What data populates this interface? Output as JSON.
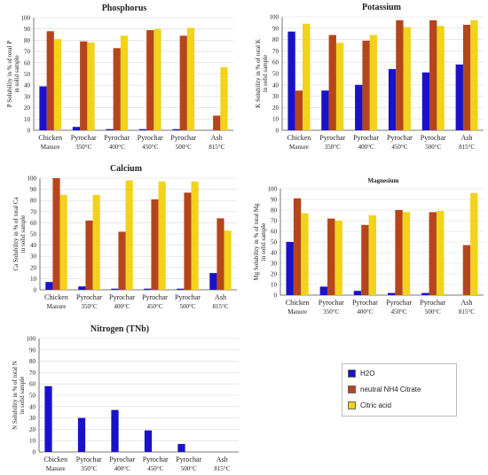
{
  "chart_data": [
    {
      "type": "bar",
      "title": "Phosphorus",
      "ylabel": "P Solubility in % of total P in solid sample",
      "ylim": [
        0,
        100
      ],
      "yticks": [
        0,
        10,
        20,
        30,
        40,
        50,
        60,
        70,
        80,
        90,
        100
      ],
      "categories": [
        "Chicken Manure",
        "Pyrochar 350°C",
        "Pyrochar 400°C",
        "Pyrochar 450°C",
        "Pyrochar 500°C",
        "Ash 815°C"
      ],
      "series": [
        {
          "name": "H2O",
          "values": [
            39,
            3,
            1,
            1,
            1,
            0
          ]
        },
        {
          "name": "neutral NH4 Citrate",
          "values": [
            88,
            79,
            73,
            89,
            84,
            13
          ]
        },
        {
          "name": "Citric acid",
          "values": [
            81,
            78,
            84,
            90,
            91,
            56
          ]
        }
      ]
    },
    {
      "type": "bar",
      "title": "Potassium",
      "ylabel": "K Solubility in % of total K in solid sample",
      "ylim": [
        0,
        100
      ],
      "yticks": [
        0,
        10,
        20,
        30,
        40,
        50,
        60,
        70,
        80,
        90,
        100
      ],
      "categories": [
        "Chicken Manure",
        "Pyrochar 350°C",
        "Pyrochar 400°C",
        "Pyrochar 450°C",
        "Pyrochar 500°C",
        "Ash 815°C"
      ],
      "series": [
        {
          "name": "H2O",
          "values": [
            87,
            35,
            40,
            54,
            51,
            58
          ]
        },
        {
          "name": "neutral NH4 Citrate",
          "values": [
            35,
            84,
            79,
            97,
            97,
            93
          ]
        },
        {
          "name": "Citric acid",
          "values": [
            94,
            77,
            84,
            91,
            92,
            97
          ]
        }
      ]
    },
    {
      "type": "bar",
      "title": "Calcium",
      "ylabel": "Ca Solubility in % of total Ca in solid sample",
      "ylim": [
        0,
        100
      ],
      "yticks": [
        0,
        10,
        20,
        30,
        40,
        50,
        60,
        70,
        80,
        90,
        100
      ],
      "categories": [
        "Chicken Manure",
        "Pyrochar 350°C",
        "Pyrochar 400°C",
        "Pyrochar 450°C",
        "Pyrochar 500°C",
        "Ash 815°C"
      ],
      "series": [
        {
          "name": "H2O",
          "values": [
            7,
            3,
            1,
            1,
            1,
            15
          ]
        },
        {
          "name": "neutral NH4 Citrate",
          "values": [
            100,
            62,
            52,
            81,
            87,
            64
          ]
        },
        {
          "name": "Citric acid",
          "values": [
            85,
            85,
            98,
            97,
            97,
            53
          ]
        }
      ]
    },
    {
      "type": "bar",
      "title": "Magnesium",
      "ylabel": "Mg Solubility in % of total Mg in solid sample",
      "ylim": [
        0,
        100
      ],
      "yticks": [
        0,
        10,
        20,
        30,
        40,
        50,
        60,
        70,
        80,
        90,
        100
      ],
      "categories": [
        "Chicken Manure",
        "Pyrochar 350°C",
        "Pyrochar 400°C",
        "Pyrochar 450°C",
        "Pyrochar 500°C",
        "Ash 815°C"
      ],
      "series": [
        {
          "name": "H2O",
          "values": [
            50,
            8,
            4,
            2,
            2,
            0
          ]
        },
        {
          "name": "neutral NH4 Citrate",
          "values": [
            91,
            72,
            66,
            80,
            78,
            47
          ]
        },
        {
          "name": "Citric acid",
          "values": [
            77,
            70,
            75,
            78,
            79,
            96
          ]
        }
      ]
    },
    {
      "type": "bar",
      "title": "Nitrogen (TNb)",
      "ylabel": "N Solubility in % of total N in solid sample",
      "ylim": [
        0,
        100
      ],
      "yticks": [
        0,
        10,
        20,
        30,
        40,
        50,
        60,
        70,
        80,
        90,
        100
      ],
      "categories": [
        "Chicken Manure",
        "Pyrochar 350°C",
        "Pyrochar 400°C",
        "Pyrochar 450°C",
        "Pyrochar 500°C",
        "Ash 815°C"
      ],
      "series": [
        {
          "name": "H2O",
          "values": [
            58,
            30,
            37,
            19,
            7,
            0
          ]
        },
        {
          "name": "neutral NH4 Citrate",
          "values": [
            0,
            0,
            0,
            0,
            0,
            0
          ]
        },
        {
          "name": "Citric acid",
          "values": [
            0,
            0,
            0,
            0,
            0,
            0
          ]
        }
      ]
    }
  ],
  "legend": {
    "items": [
      {
        "label": "H2O",
        "color": "#1a12c8"
      },
      {
        "label": "neutral NH4 Citrate",
        "color": "#b5451b"
      },
      {
        "label": "Citric acid",
        "color": "#f2d21b"
      }
    ]
  },
  "colors": {
    "h2o": "#1a12c8",
    "nh4_citrate": "#b5451b",
    "citric_acid": "#f2d21b",
    "grid": "#d9d9d9"
  }
}
